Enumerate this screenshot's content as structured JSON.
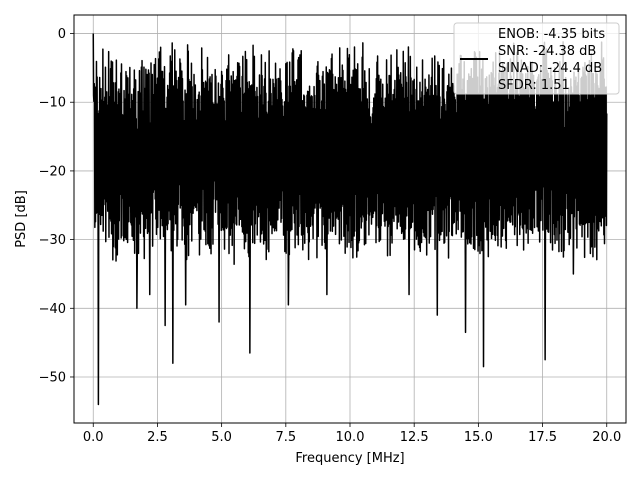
{
  "chart_data": {
    "type": "line",
    "title": "",
    "xlabel": "Frequency [MHz]",
    "ylabel": "PSD [dB]",
    "xlim": [
      -0.75,
      20.75
    ],
    "ylim": [
      -56.7,
      2.7
    ],
    "x_ticks": [
      0.0,
      2.5,
      5.0,
      7.5,
      10.0,
      12.5,
      15.0,
      17.5,
      20.0
    ],
    "x_tick_labels": [
      "0.0",
      "2.5",
      "5.0",
      "7.5",
      "10.0",
      "12.5",
      "15.0",
      "17.5",
      "20.0"
    ],
    "y_ticks": [
      0,
      -10,
      -20,
      -30,
      -40,
      -50
    ],
    "y_tick_labels": [
      "0",
      "−10",
      "−20",
      "−30",
      "−40",
      "−50"
    ],
    "grid": true,
    "legend_position": "upper-right",
    "legend_lines": [
      "ENOB: -4.35 bits",
      "SNR: -24.38 dB",
      "SINAD: -24.4 dB",
      "SFDR: 1.51"
    ],
    "series": [
      {
        "color": "#000000",
        "description_envelope": {
          "x_range": [
            0.0,
            20.0
          ],
          "upper_db_approx": -8,
          "lower_db_approx": -27,
          "dips": [
            {
              "x": 0.2,
              "y": -54.0
            },
            {
              "x": 1.7,
              "y": -40.0
            },
            {
              "x": 2.2,
              "y": -38.0
            },
            {
              "x": 2.8,
              "y": -42.5
            },
            {
              "x": 3.1,
              "y": -48.0
            },
            {
              "x": 3.6,
              "y": -39.5
            },
            {
              "x": 4.9,
              "y": -42.0
            },
            {
              "x": 6.1,
              "y": -46.5
            },
            {
              "x": 7.6,
              "y": -39.5
            },
            {
              "x": 9.1,
              "y": -38.0
            },
            {
              "x": 12.3,
              "y": -38.0
            },
            {
              "x": 13.4,
              "y": -41.0
            },
            {
              "x": 14.5,
              "y": -43.5
            },
            {
              "x": 15.2,
              "y": -48.5
            },
            {
              "x": 17.6,
              "y": -47.5
            },
            {
              "x": 18.7,
              "y": -35.0
            }
          ],
          "peaks": [
            {
              "x": 0.0,
              "y": 0.0
            },
            {
              "x": 7.8,
              "y": -2.5
            },
            {
              "x": 8.0,
              "y": -3.5
            }
          ]
        }
      }
    ]
  }
}
